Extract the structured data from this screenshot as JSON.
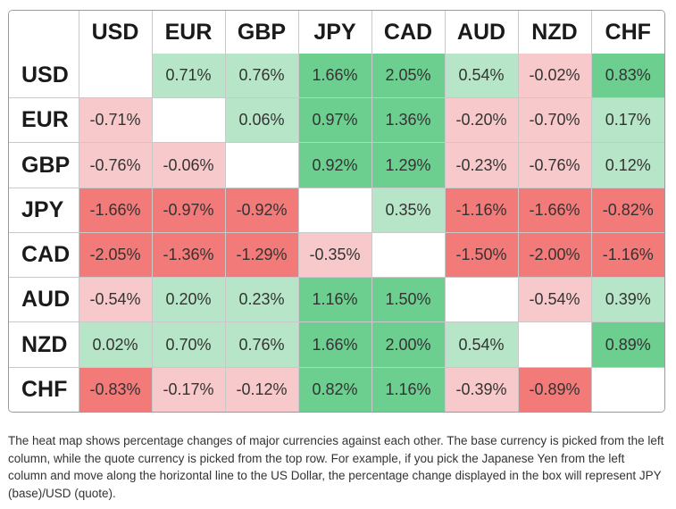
{
  "chart_data": {
    "type": "heatmap",
    "title": "",
    "xlabel": "",
    "ylabel": "",
    "columns": [
      "USD",
      "EUR",
      "GBP",
      "JPY",
      "CAD",
      "AUD",
      "NZD",
      "CHF"
    ],
    "rows": [
      "USD",
      "EUR",
      "GBP",
      "JPY",
      "CAD",
      "AUD",
      "NZD",
      "CHF"
    ],
    "values": [
      [
        null,
        0.71,
        0.76,
        1.66,
        2.05,
        0.54,
        -0.02,
        0.83
      ],
      [
        -0.71,
        null,
        0.06,
        0.97,
        1.36,
        -0.2,
        -0.7,
        0.17
      ],
      [
        -0.76,
        -0.06,
        null,
        0.92,
        1.29,
        -0.23,
        -0.76,
        0.12
      ],
      [
        -1.66,
        -0.97,
        -0.92,
        null,
        0.35,
        -1.16,
        -1.66,
        -0.82
      ],
      [
        -2.05,
        -1.36,
        -1.29,
        -0.35,
        null,
        -1.5,
        -2.0,
        -1.16
      ],
      [
        -0.54,
        0.2,
        0.23,
        1.16,
        1.5,
        null,
        -0.54,
        0.39
      ],
      [
        0.02,
        0.7,
        0.76,
        1.66,
        2.0,
        0.54,
        null,
        0.89
      ],
      [
        -0.83,
        -0.17,
        -0.12,
        0.82,
        1.16,
        -0.39,
        -0.89,
        null
      ]
    ],
    "colors": {
      "positive_light": "#b6e6c7",
      "positive_strong": "#6ccf8f",
      "negative_light": "#f8c9cb",
      "negative_strong": "#f27a79",
      "empty": "#ffffff"
    }
  },
  "caption": "The heat map shows percentage changes of major currencies against each other. The base currency is picked from the left column, while the quote currency is picked from the top row. For example, if you pick the Japanese Yen from the left column and move along the horizontal line to the US Dollar, the percentage change displayed in the box will represent JPY (base)/USD (quote)."
}
